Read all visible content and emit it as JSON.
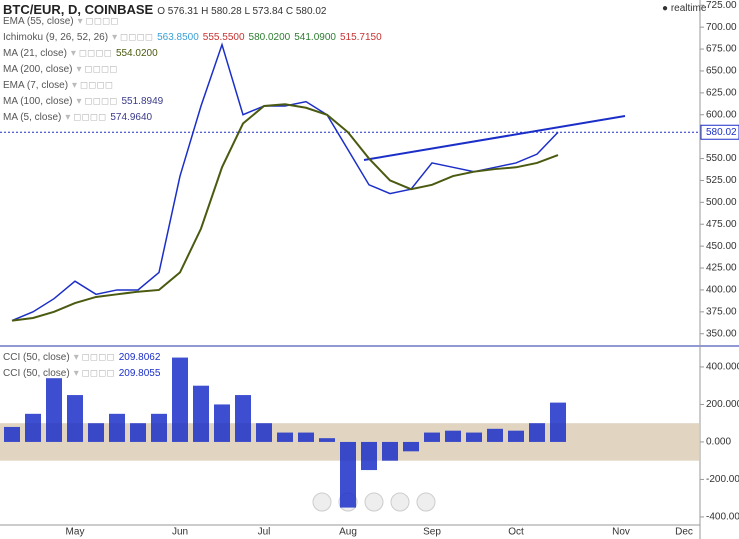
{
  "header": {
    "symbol": "BTC/EUR, D, COINBASE",
    "ohlc": "O 576.31  H 580.28  L 573.84  C 580.02",
    "status": "realtime"
  },
  "indicators": [
    {
      "label": "EMA (55, close)",
      "values": []
    },
    {
      "label": "Ichimoku (9, 26, 52, 26)",
      "values": [
        {
          "text": "563.8500",
          "color": "#3aa0d8"
        },
        {
          "text": "555.5500",
          "color": "#c83232"
        },
        {
          "text": "580.0200",
          "color": "#2e7d32"
        },
        {
          "text": "541.0900",
          "color": "#2e7d32"
        },
        {
          "text": "515.7150",
          "color": "#c83232"
        }
      ]
    },
    {
      "label": "MA (21, close)",
      "values": [
        {
          "text": "554.0200",
          "color": "#4a5a10"
        }
      ]
    },
    {
      "label": "MA (200, close)",
      "values": []
    },
    {
      "label": "EMA (7, close)",
      "values": []
    },
    {
      "label": "MA (100, close)",
      "values": [
        {
          "text": "551.8949",
          "color": "#3a3a8a"
        }
      ]
    },
    {
      "label": "MA (5, close)",
      "values": [
        {
          "text": "574.9640",
          "color": "#3a3a8a"
        }
      ]
    }
  ],
  "cci_legend": [
    {
      "label": "CCI (50, close)",
      "value": "209.8062"
    },
    {
      "label": "CCI (50, close)",
      "value": "209.8055"
    }
  ],
  "chart_data": [
    {
      "type": "line",
      "ylim": [
        336,
        731
      ],
      "yticks": [
        {
          "value": 350,
          "label": "350.00"
        },
        {
          "value": 375,
          "label": "375.00"
        },
        {
          "value": 400,
          "label": "400.00"
        },
        {
          "value": 425,
          "label": "425.00"
        },
        {
          "value": 450,
          "label": "450.00"
        },
        {
          "value": 475,
          "label": "475.00"
        },
        {
          "value": 500,
          "label": "500.00"
        },
        {
          "value": 525,
          "label": "525.00"
        },
        {
          "value": 550,
          "label": "550.00"
        },
        {
          "value": 575,
          "label": "575.00"
        },
        {
          "value": 600,
          "label": "600.00"
        },
        {
          "value": 625,
          "label": "625.00"
        },
        {
          "value": 650,
          "label": "650.00"
        },
        {
          "value": 675,
          "label": "675.00"
        },
        {
          "value": 700,
          "label": "700.00"
        },
        {
          "value": 725,
          "label": "725.00"
        }
      ],
      "categories": [
        null,
        null,
        null,
        "May",
        null,
        null,
        null,
        null,
        "Jun",
        null,
        null,
        null,
        "Jul",
        null,
        null,
        null,
        "Aug",
        null,
        null,
        null,
        "Sep",
        null,
        null,
        null,
        "Oct",
        null,
        null,
        null,
        null,
        "Nov",
        null,
        null,
        "Dec"
      ],
      "last_price": {
        "value": 580.02,
        "label": "580.02"
      },
      "series": [
        {
          "color": "#1b2fc8",
          "values": [
            365,
            375,
            390,
            410,
            395,
            400,
            400,
            420,
            530,
            610,
            680,
            600,
            610,
            610,
            615,
            600,
            560,
            520,
            510,
            515,
            545,
            540,
            535,
            540,
            545,
            555,
            580.02,
            null,
            null,
            null,
            null,
            null,
            null
          ]
        },
        {
          "color": "#4a5a10",
          "values": [
            365,
            368,
            375,
            385,
            392,
            395,
            398,
            400,
            420,
            470,
            540,
            590,
            610,
            612,
            608,
            600,
            580,
            550,
            525,
            515,
            520,
            530,
            535,
            538,
            540,
            545,
            554.02,
            null,
            null,
            null,
            null,
            null,
            null
          ]
        }
      ]
    },
    {
      "type": "bar",
      "ylim": [
        -443,
        501
      ],
      "color": "#1b2fc8",
      "yticks": [
        {
          "value": 400,
          "label": "400.000"
        },
        {
          "value": 200,
          "label": "200.000"
        },
        {
          "value": 0,
          "label": "0.000"
        },
        {
          "value": -200,
          "label": "-200.000"
        },
        {
          "value": -400,
          "label": "-400.000"
        }
      ],
      "band": [
        100,
        -100
      ],
      "values": [
        80,
        150,
        340,
        250,
        100,
        150,
        100,
        150,
        450,
        300,
        200,
        250,
        100,
        50,
        50,
        20,
        -350,
        -150,
        -100,
        -50,
        50,
        60,
        50,
        70,
        60,
        100,
        209.8,
        null,
        null,
        null,
        null,
        null,
        null
      ]
    }
  ]
}
